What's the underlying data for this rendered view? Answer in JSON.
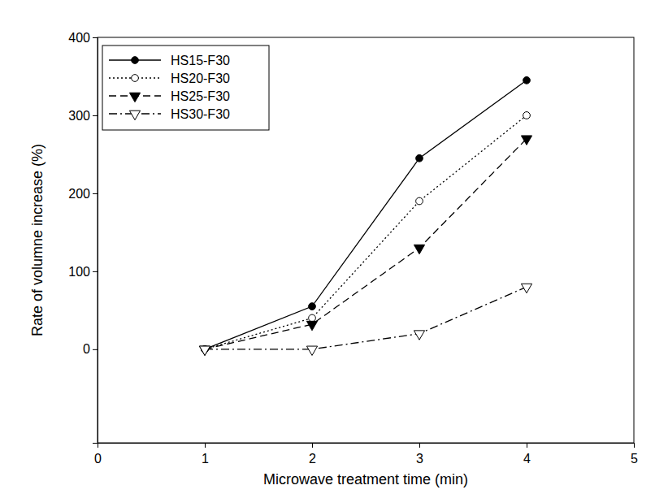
{
  "chart_data": {
    "type": "line",
    "x_label": "Microwave treatment time (min)",
    "y_label": "Rate of volumne increase (%)",
    "x": [
      1,
      2,
      3,
      4
    ],
    "series": [
      {
        "name": "HS15-F30",
        "color": "#000000",
        "marker": "circle-filled",
        "line_style": "solid",
        "values": [
          0,
          55,
          245,
          345
        ]
      },
      {
        "name": "HS20-F30",
        "color": "#000000",
        "marker": "circle-open",
        "line_style": "dotted",
        "values": [
          0,
          40,
          190,
          300
        ]
      },
      {
        "name": "HS25-F30",
        "color": "#000000",
        "marker": "triangle-down-filled",
        "line_style": "dashed",
        "values": [
          0,
          32,
          130,
          270
        ]
      },
      {
        "name": "HS30-F30",
        "color": "#000000",
        "marker": "triangle-down-open",
        "line_style": "dashdot",
        "values": [
          0,
          0,
          20,
          80
        ]
      }
    ],
    "xlim": [
      0,
      5
    ],
    "xticks": [
      0,
      1,
      2,
      3,
      4,
      5
    ],
    "ylim": [
      -120,
      400
    ],
    "yticks": [
      0,
      100,
      200,
      300,
      400
    ],
    "grid": false,
    "legend": "upper left"
  }
}
